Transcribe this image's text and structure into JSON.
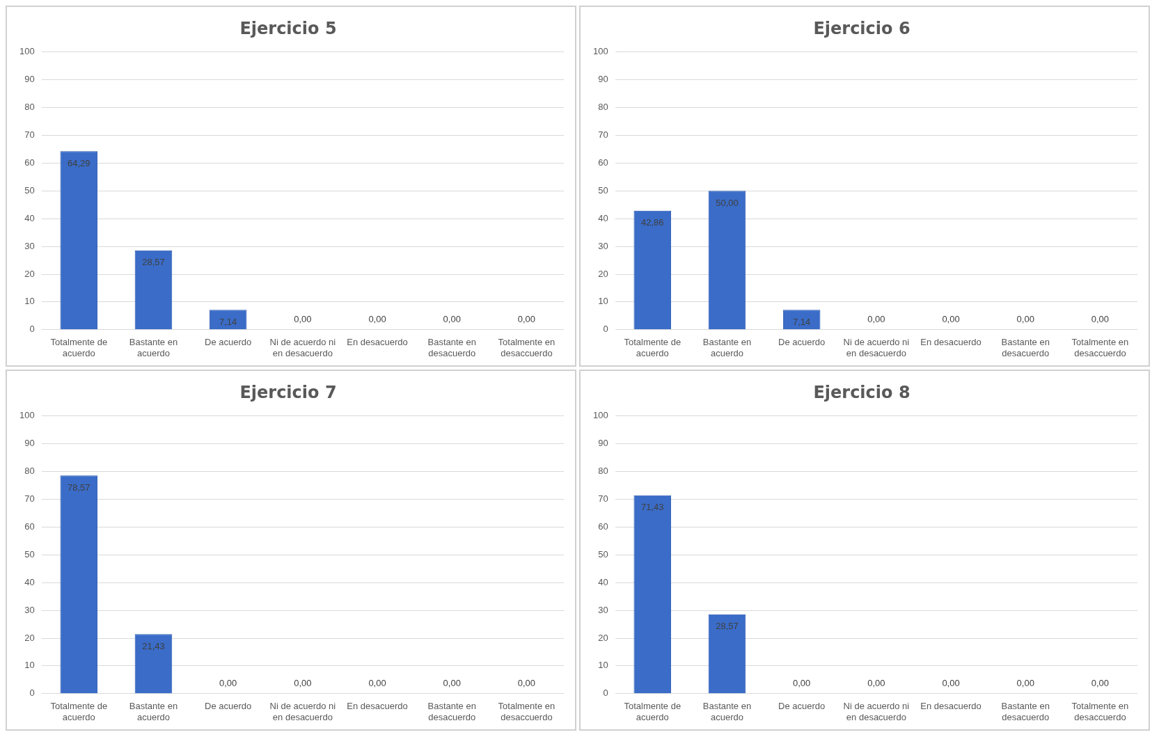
{
  "chart_data": [
    {
      "type": "bar",
      "title": "Ejercicio 5",
      "categories": [
        "Totalmente de acuerdo",
        "Bastante en acuerdo",
        "De acuerdo",
        "Ni de acuerdo ni en desacuerdo",
        "En desacuerdo",
        "Bastante en desacuerdo",
        "Totalmente en desaccuerdo"
      ],
      "values": [
        64.29,
        28.57,
        7.14,
        0,
        0,
        0,
        0
      ],
      "value_labels": [
        "64,29",
        "28,57",
        "7,14",
        "0,00",
        "0,00",
        "0,00",
        "0,00"
      ],
      "color": "#3a6cc8",
      "ylim": [
        0,
        100
      ],
      "yticks": [
        0,
        10,
        20,
        30,
        40,
        50,
        60,
        70,
        80,
        90,
        100
      ],
      "grid": "y",
      "legend": false
    },
    {
      "type": "bar",
      "title": "Ejercicio 6",
      "categories": [
        "Totalmente de acuerdo",
        "Bastante en acuerdo",
        "De acuerdo",
        "Ni de acuerdo ni en desacuerdo",
        "En desacuerdo",
        "Bastante en desacuerdo",
        "Totalmente en desaccuerdo"
      ],
      "values": [
        42.86,
        50,
        7.14,
        0,
        0,
        0,
        0
      ],
      "value_labels": [
        "42,86",
        "50,00",
        "7,14",
        "0,00",
        "0,00",
        "0,00",
        "0,00"
      ],
      "color": "#3a6cc8",
      "ylim": [
        0,
        100
      ],
      "yticks": [
        0,
        10,
        20,
        30,
        40,
        50,
        60,
        70,
        80,
        90,
        100
      ],
      "grid": "y",
      "legend": false
    },
    {
      "type": "bar",
      "title": "Ejercicio 7",
      "categories": [
        "Totalmente de acuerdo",
        "Bastante en acuerdo",
        "De acuerdo",
        "Ni de acuerdo ni en desacuerdo",
        "En desacuerdo",
        "Bastante en desacuerdo",
        "Totalmente en desaccuerdo"
      ],
      "values": [
        78.57,
        21.43,
        0,
        0,
        0,
        0,
        0
      ],
      "value_labels": [
        "78,57",
        "21,43",
        "0,00",
        "0,00",
        "0,00",
        "0,00",
        "0,00"
      ],
      "color": "#3a6cc8",
      "ylim": [
        0,
        100
      ],
      "yticks": [
        0,
        10,
        20,
        30,
        40,
        50,
        60,
        70,
        80,
        90,
        100
      ],
      "grid": "y",
      "legend": false
    },
    {
      "type": "bar",
      "title": "Ejercicio 8",
      "categories": [
        "Totalmente de acuerdo",
        "Bastante en acuerdo",
        "De acuerdo",
        "Ni de acuerdo ni en desacuerdo",
        "En desacuerdo",
        "Bastante en desacuerdo",
        "Totalmente en desaccuerdo"
      ],
      "values": [
        71.43,
        28.57,
        0,
        0,
        0,
        0,
        0
      ],
      "value_labels": [
        "71,43",
        "28,57",
        "0,00",
        "0,00",
        "0,00",
        "0,00",
        "0,00"
      ],
      "color": "#3a6cc8",
      "ylim": [
        0,
        100
      ],
      "yticks": [
        0,
        10,
        20,
        30,
        40,
        50,
        60,
        70,
        80,
        90,
        100
      ],
      "grid": "y",
      "legend": false
    }
  ]
}
